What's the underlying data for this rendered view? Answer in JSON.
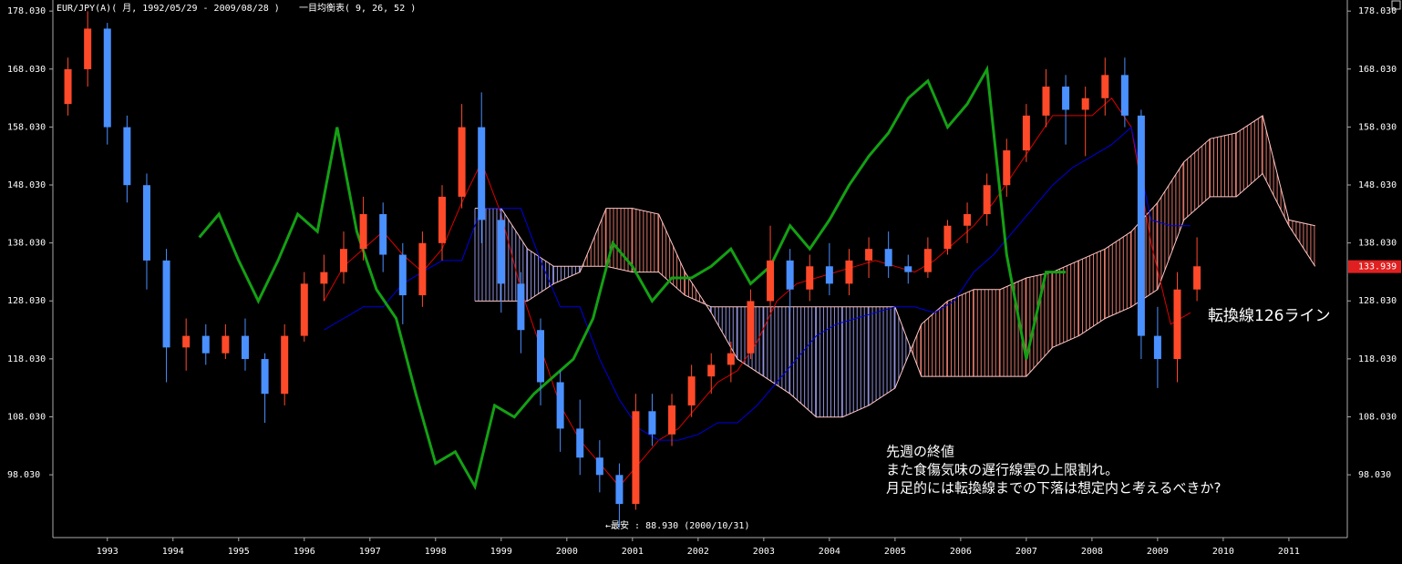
{
  "chart_data": {
    "type": "candlestick",
    "title": "EUR/JPY(A)( 月, 1992/05/29 - 2009/08/28 )",
    "subtitle": "一目均衡表( 9, 26, 52 )",
    "xlim": [
      1992.17,
      2011.89
    ],
    "ylim": [
      87.2,
      179.94
    ],
    "xticks": [
      1993,
      1994,
      1995,
      1996,
      1997,
      1998,
      1999,
      2000,
      2001,
      2002,
      2003,
      2004,
      2005,
      2006,
      2007,
      2008,
      2009,
      2010,
      2011
    ],
    "yticks": [
      {
        "value": 98.03,
        "label": "98.030"
      },
      {
        "value": 108.03,
        "label": "108.030"
      },
      {
        "value": 118.03,
        "label": "118.030"
      },
      {
        "value": 128.03,
        "label": "128.030"
      },
      {
        "value": 138.03,
        "label": "138.030"
      },
      {
        "value": 148.03,
        "label": "148.030"
      },
      {
        "value": 158.03,
        "label": "158.030"
      },
      {
        "value": 168.03,
        "label": "168.030"
      },
      {
        "value": 178.03,
        "label": "178.030"
      }
    ],
    "up_color": "#ff4a2a",
    "down_color": "#4a90ff",
    "candles": {
      "x": [
        1992.4,
        1992.7,
        1993.0,
        1993.3,
        1993.6,
        1993.9,
        1994.2,
        1994.5,
        1994.8,
        1995.1,
        1995.4,
        1995.7,
        1996.0,
        1996.3,
        1996.6,
        1996.9,
        1997.2,
        1997.5,
        1997.8,
        1998.1,
        1998.4,
        1998.7,
        1999.0,
        1999.3,
        1999.6,
        1999.9,
        2000.2,
        2000.5,
        2000.8,
        2001.05,
        2001.3,
        2001.6,
        2001.9,
        2002.2,
        2002.5,
        2002.8,
        2003.1,
        2003.4,
        2003.7,
        2004.0,
        2004.3,
        2004.6,
        2004.9,
        2005.2,
        2005.5,
        2005.8,
        2006.1,
        2006.4,
        2006.7,
        2007.0,
        2007.3,
        2007.6,
        2007.9,
        2008.2,
        2008.5,
        2008.75,
        2009.0,
        2009.3,
        2009.6
      ],
      "open": [
        162,
        168,
        175,
        158,
        148,
        135,
        120,
        122,
        119,
        122,
        118,
        112,
        122,
        131,
        133,
        137,
        143,
        136,
        129,
        138,
        146,
        158,
        142,
        131,
        123,
        114,
        106,
        101,
        98,
        93,
        109,
        105,
        110,
        115,
        117,
        119,
        128,
        135,
        130,
        134,
        131,
        135,
        137,
        134,
        133,
        137,
        141,
        143,
        148,
        154,
        160,
        165,
        161,
        163,
        167,
        160,
        122,
        118,
        130
      ],
      "high": [
        170,
        178,
        176,
        160,
        150,
        137,
        125,
        124,
        124,
        125,
        119,
        124,
        133,
        136,
        140,
        146,
        145,
        138,
        140,
        148,
        162,
        164,
        144,
        133,
        125,
        116,
        111,
        104,
        100,
        112,
        112,
        112,
        117,
        119,
        121,
        130,
        141,
        137,
        136,
        138,
        137,
        139,
        140,
        136,
        139,
        142,
        145,
        150,
        156,
        162,
        168,
        167,
        165,
        170,
        170,
        161,
        127,
        133,
        139
      ],
      "low": [
        160,
        165,
        155,
        145,
        130,
        114,
        116,
        117,
        118,
        116,
        107,
        110,
        121,
        128,
        131,
        135,
        133,
        124,
        127,
        135,
        144,
        138,
        126,
        119,
        110,
        102,
        98,
        95,
        88.93,
        92,
        103,
        103,
        108,
        112,
        114,
        118,
        126,
        126,
        128,
        129,
        129,
        132,
        132,
        131,
        132,
        136,
        138,
        141,
        146,
        152,
        158,
        155,
        153,
        160,
        158,
        118,
        113,
        114,
        128
      ],
      "close": [
        168,
        175,
        158,
        148,
        135,
        120,
        122,
        119,
        122,
        118,
        112,
        122,
        131,
        133,
        137,
        143,
        136,
        129,
        138,
        146,
        158,
        142,
        131,
        123,
        114,
        106,
        101,
        98,
        93,
        109,
        105,
        110,
        115,
        117,
        119,
        128,
        135,
        130,
        134,
        131,
        135,
        137,
        134,
        133,
        137,
        141,
        143,
        148,
        154,
        160,
        165,
        161,
        163,
        167,
        160,
        122,
        118,
        130,
        134
      ]
    },
    "lines": [
      {
        "name": "tenkan",
        "color": "#e00000",
        "width": 1,
        "x": [
          1996.3,
          1996.6,
          1996.9,
          1997.2,
          1997.5,
          1997.8,
          1998.1,
          1998.4,
          1998.7,
          1999.0,
          1999.3,
          1999.6,
          1999.9,
          2000.2,
          2000.5,
          2000.8,
          2001.1,
          2001.4,
          2001.7,
          2002.0,
          2002.3,
          2002.6,
          2002.9,
          2003.2,
          2003.5,
          2003.8,
          2004.1,
          2004.4,
          2004.7,
          2005.0,
          2005.3,
          2005.6,
          2005.9,
          2006.2,
          2006.5,
          2006.8,
          2007.1,
          2007.4,
          2007.7,
          2008.0,
          2008.3,
          2008.6,
          2008.9,
          2009.2,
          2009.5
        ],
        "values": [
          128,
          134,
          137,
          140,
          136,
          133,
          137,
          145,
          152,
          143,
          130,
          120,
          110,
          104,
          100,
          96,
          100,
          104,
          106,
          110,
          114,
          116,
          121,
          128,
          131,
          132,
          133,
          134,
          135,
          134,
          133,
          135,
          138,
          141,
          145,
          150,
          155,
          160,
          160,
          160,
          163,
          158,
          138,
          124,
          126
        ]
      },
      {
        "name": "kijun",
        "color": "#0000e0",
        "width": 1,
        "x": [
          1996.3,
          1996.6,
          1996.9,
          1997.2,
          1997.5,
          1997.8,
          1998.1,
          1998.4,
          1998.7,
          1999.0,
          1999.3,
          1999.6,
          1999.9,
          2000.2,
          2000.5,
          2000.8,
          2001.1,
          2001.4,
          2001.7,
          2002.0,
          2002.3,
          2002.6,
          2002.9,
          2003.2,
          2003.5,
          2003.8,
          2004.1,
          2004.4,
          2004.7,
          2005.0,
          2005.3,
          2005.6,
          2005.9,
          2006.2,
          2006.5,
          2006.8,
          2007.1,
          2007.4,
          2007.7,
          2008.0,
          2008.3,
          2008.6,
          2008.9,
          2009.2,
          2009.5
        ],
        "values": [
          123,
          125,
          127,
          127,
          131,
          133,
          135,
          135,
          144,
          144,
          144,
          135,
          127,
          127,
          118,
          111,
          106,
          104,
          104,
          105,
          107,
          107,
          110,
          114,
          118,
          122,
          124,
          125,
          126,
          127,
          127,
          126,
          128,
          133,
          136,
          140,
          144,
          148,
          151,
          153,
          155,
          158,
          142,
          141,
          141
        ]
      },
      {
        "name": "chikou",
        "color": "#14a014",
        "width": 3,
        "x": [
          1994.4,
          1994.7,
          1995.0,
          1995.3,
          1995.6,
          1995.9,
          1996.2,
          1996.5,
          1996.8,
          1997.1,
          1997.4,
          1997.7,
          1998.0,
          1998.3,
          1998.6,
          1998.9,
          1999.2,
          1999.5,
          1999.8,
          2000.1,
          2000.4,
          2000.7,
          2001.0,
          2001.3,
          2001.6,
          2001.9,
          2002.2,
          2002.5,
          2002.8,
          2003.1,
          2003.4,
          2003.7,
          2004.0,
          2004.3,
          2004.6,
          2004.9,
          2005.2,
          2005.5,
          2005.8,
          2006.1,
          2006.4,
          2006.7,
          2007.0,
          2007.3,
          2007.6
        ],
        "values": [
          139,
          143,
          135,
          128,
          135,
          143,
          140,
          158,
          140,
          130,
          125,
          112,
          100,
          102,
          96,
          110,
          108,
          112,
          115,
          118,
          125,
          138,
          134,
          128,
          132,
          132,
          134,
          137,
          131,
          134,
          141,
          137,
          142,
          148,
          153,
          157,
          163,
          166,
          158,
          162,
          168,
          136,
          118,
          133,
          133
        ]
      }
    ],
    "cloud": {
      "up_color": "#ff8a7a",
      "down_color": "#a8a8ff",
      "x": [
        1998.6,
        1999.0,
        1999.4,
        1999.8,
        2000.2,
        2000.6,
        2001.0,
        2001.4,
        2001.8,
        2002.2,
        2002.6,
        2003.0,
        2003.4,
        2003.8,
        2004.2,
        2004.6,
        2005.0,
        2005.4,
        2005.8,
        2006.2,
        2006.6,
        2007.0,
        2007.4,
        2007.8,
        2008.2,
        2008.6,
        2009.0,
        2009.4,
        2009.8,
        2010.2,
        2010.6,
        2011.0,
        2011.4
      ],
      "span_a": [
        128,
        128,
        128,
        131,
        133,
        144,
        144,
        143,
        133,
        126,
        118,
        115,
        112,
        108,
        108,
        110,
        113,
        124,
        128,
        130,
        130,
        132,
        133,
        135,
        137,
        140,
        145,
        152,
        156,
        157,
        160,
        142,
        141
      ],
      "span_b": [
        144,
        144,
        137,
        134,
        134,
        134,
        133,
        133,
        129,
        127,
        127,
        127,
        127,
        127,
        127,
        127,
        127,
        115,
        115,
        115,
        115,
        115,
        120,
        122,
        125,
        127,
        130,
        142,
        146,
        146,
        150,
        141,
        134
      ]
    },
    "last_price": 133.939,
    "annotations": [
      "←最安 : 88.930 (2000/10/31)",
      "転換線126ライン",
      "先週の終値",
      "また食傷気味の遅行線雲の上限割れ。",
      "月足的には転換線までの下落は想定内と考えるべきか?"
    ]
  }
}
